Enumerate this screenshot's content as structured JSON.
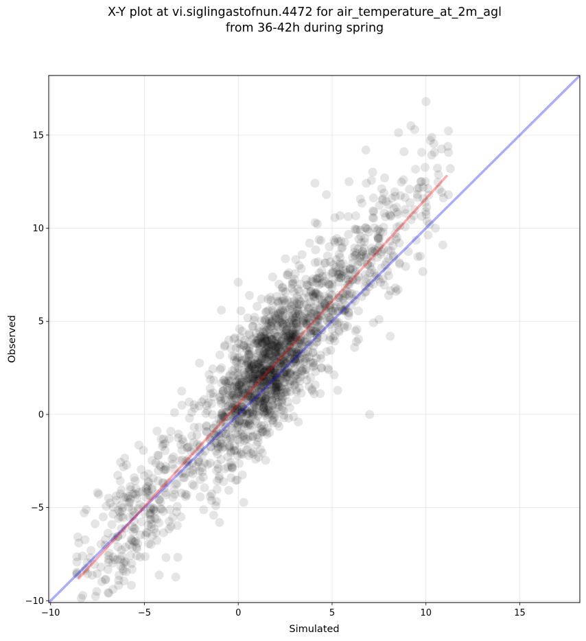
{
  "chart_data": {
    "type": "scatter",
    "title_line1": "X-Y plot at vi.siglingastofnun.4472 for air_temperature_at_2m_agl",
    "title_line2": "from 36-42h during spring",
    "xlabel": "Simulated",
    "ylabel": "Observed",
    "xlim": [
      -10.1,
      18.2
    ],
    "ylim": [
      -10.1,
      18.2
    ],
    "xticks": [
      -10,
      -5,
      0,
      5,
      10,
      15
    ],
    "yticks": [
      -10,
      -5,
      0,
      5,
      10,
      15
    ],
    "grid": true,
    "point_color": "#000000",
    "point_alpha": 0.1,
    "identity_line": {
      "color": "#0000ff",
      "x": [
        -10.1,
        18.2
      ],
      "y": [
        -10.1,
        18.2
      ]
    },
    "fit_line": {
      "color": "#ff0000",
      "x": [
        -8.5,
        11.1
      ],
      "y": [
        -8.8,
        12.8
      ]
    },
    "sample_points": [
      [
        -8.5,
        -6.9
      ],
      [
        -8.3,
        -7.6
      ],
      [
        -8.1,
        -5.1
      ],
      [
        -7.5,
        -4.2
      ],
      [
        -7.2,
        -5.5
      ],
      [
        -6.5,
        -4.6
      ],
      [
        -6.2,
        -5.2
      ],
      [
        -6.0,
        -6.1
      ],
      [
        -5.8,
        -5.5
      ],
      [
        -5.6,
        -6.8
      ],
      [
        -5.4,
        -4.5
      ],
      [
        -5.0,
        -3.3
      ],
      [
        -4.8,
        -4.1
      ],
      [
        -4.4,
        -2.6
      ],
      [
        -4.0,
        -1.6
      ],
      [
        -3.6,
        -0.9
      ],
      [
        -3.4,
        0.1
      ],
      [
        -3.0,
        0.5
      ],
      [
        -2.6,
        -0.2
      ],
      [
        -2.2,
        -1.1
      ],
      [
        -1.8,
        -2.6
      ],
      [
        -1.5,
        -4.4
      ],
      [
        -1.2,
        -4.9
      ],
      [
        -1.0,
        -5.8
      ],
      [
        -0.9,
        5.6
      ],
      [
        -0.5,
        4.0
      ],
      [
        -0.2,
        3.1
      ],
      [
        0.0,
        7.1
      ],
      [
        0.2,
        0.6
      ],
      [
        0.5,
        -0.4
      ],
      [
        0.8,
        1.7
      ],
      [
        1.0,
        5.8
      ],
      [
        1.2,
        -1.0
      ],
      [
        1.4,
        3.0
      ],
      [
        1.7,
        6.3
      ],
      [
        2.0,
        2.2
      ],
      [
        2.3,
        0.7
      ],
      [
        2.6,
        7.5
      ],
      [
        2.9,
        4.2
      ],
      [
        3.2,
        -0.4
      ],
      [
        3.5,
        5.9
      ],
      [
        3.8,
        9.2
      ],
      [
        4.1,
        10.3
      ],
      [
        4.4,
        3.0
      ],
      [
        4.7,
        11.8
      ],
      [
        5.0,
        6.8
      ],
      [
        5.3,
        1.3
      ],
      [
        5.6,
        8.1
      ],
      [
        5.9,
        12.5
      ],
      [
        6.2,
        3.6
      ],
      [
        6.5,
        9.9
      ],
      [
        6.8,
        14.2
      ],
      [
        7.0,
        0.0
      ],
      [
        7.2,
        7.0
      ],
      [
        7.5,
        5.1
      ],
      [
        7.8,
        12.7
      ],
      [
        8.1,
        4.2
      ],
      [
        8.4,
        9.4
      ],
      [
        8.8,
        12.6
      ],
      [
        9.2,
        15.5
      ],
      [
        9.4,
        15.3
      ],
      [
        9.7,
        8.5
      ],
      [
        10.0,
        16.8
      ],
      [
        10.5,
        10.0
      ],
      [
        10.9,
        9.1
      ],
      [
        11.3,
        13.2
      ]
    ]
  }
}
